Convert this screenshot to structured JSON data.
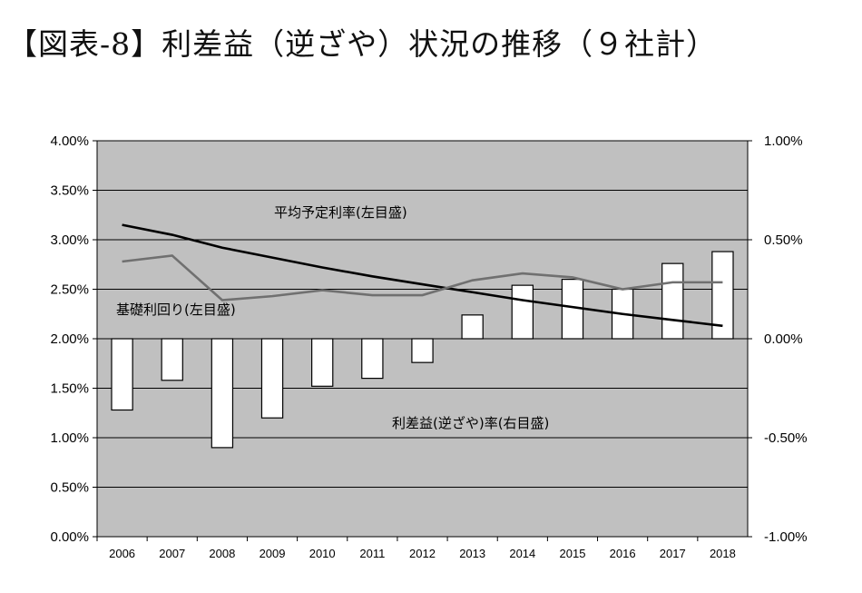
{
  "title": "【図表-8】利差益（逆ざや）状況の推移（９社計）",
  "chart_data": {
    "type": "bar+line",
    "categories": [
      "2006",
      "2007",
      "2008",
      "2009",
      "2010",
      "2011",
      "2012",
      "2013",
      "2014",
      "2015",
      "2016",
      "2017",
      "2018"
    ],
    "left_axis": {
      "ticks": [
        "0.00%",
        "0.50%",
        "1.00%",
        "1.50%",
        "2.00%",
        "2.50%",
        "3.00%",
        "3.50%",
        "4.00%"
      ],
      "ylim": [
        0,
        4
      ]
    },
    "right_axis": {
      "ticks": [
        "-1.00%",
        "-0.50%",
        "0.00%",
        "0.50%",
        "1.00%"
      ],
      "ylim": [
        -1,
        1
      ]
    },
    "series": [
      {
        "name": "平均予定利率(左目盛)",
        "type": "line",
        "axis": "left",
        "color": "#000000",
        "values": [
          3.15,
          3.05,
          2.92,
          2.82,
          2.72,
          2.63,
          2.55,
          2.47,
          2.39,
          2.32,
          2.25,
          2.19,
          2.13
        ]
      },
      {
        "name": "基礎利回り(左目盛)",
        "type": "line",
        "axis": "left",
        "color": "#707070",
        "values": [
          2.78,
          2.84,
          2.39,
          2.43,
          2.49,
          2.44,
          2.44,
          2.59,
          2.66,
          2.62,
          2.5,
          2.57,
          2.57
        ]
      },
      {
        "name": "利差益(逆ざや)率(右目盛)",
        "type": "bar",
        "axis": "right",
        "color": "#ffffff",
        "values": [
          -0.36,
          -0.21,
          -0.55,
          -0.4,
          -0.24,
          -0.2,
          -0.12,
          0.12,
          0.27,
          0.3,
          0.25,
          0.38,
          0.44
        ]
      }
    ],
    "grid": true,
    "plot_background": "#c0c0c0"
  }
}
